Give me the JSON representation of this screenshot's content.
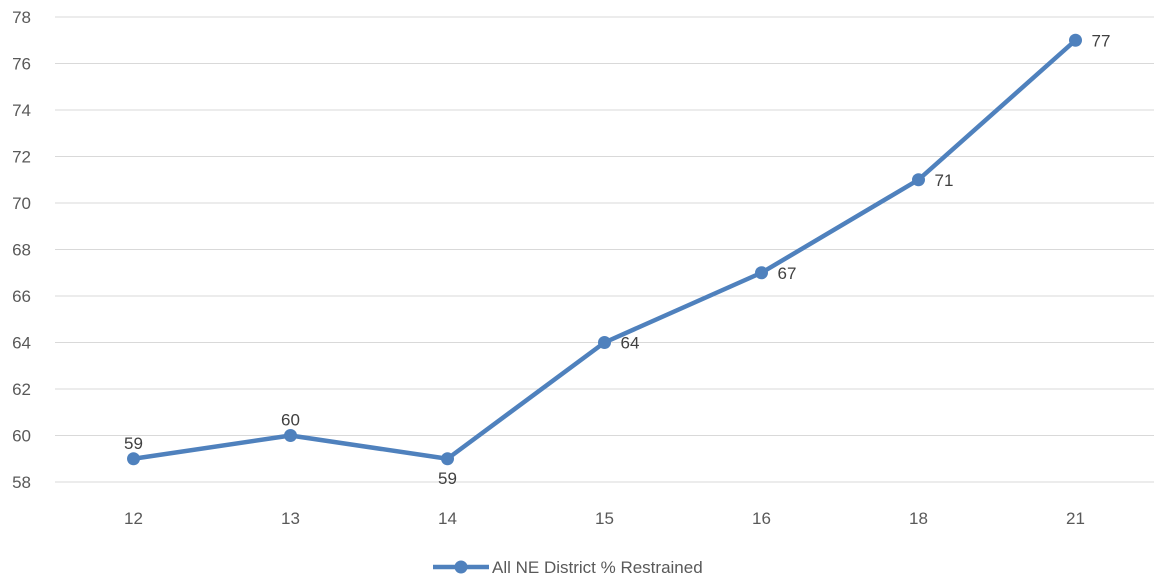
{
  "chart_data": {
    "type": "line",
    "categories": [
      "12",
      "13",
      "14",
      "15",
      "16",
      "18",
      "21"
    ],
    "series": [
      {
        "name": "All NE District % Restrained",
        "values": [
          59,
          60,
          59,
          64,
          67,
          71,
          77
        ]
      }
    ],
    "ylim": [
      58,
      78
    ],
    "yticks": [
      "58",
      "60",
      "62",
      "64",
      "66",
      "68",
      "70",
      "72",
      "74",
      "76",
      "78"
    ],
    "grid": true,
    "legend": "bottom-center",
    "color": "#4f81bd"
  }
}
